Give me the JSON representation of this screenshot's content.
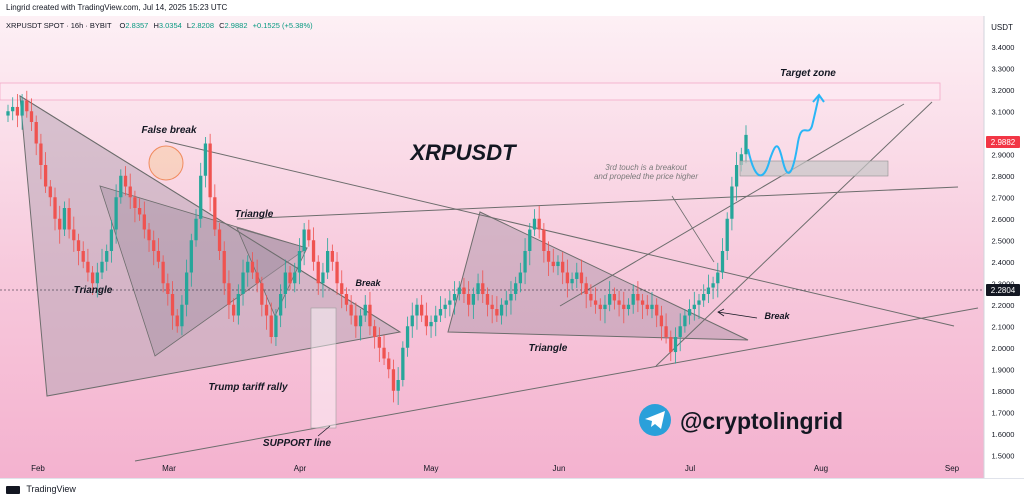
{
  "header": {
    "created_by": "Lingrid created with TradingView.com, Jul 14, 2025 15:23 UTC"
  },
  "legend": {
    "symbol": "XRPUSDT SPOT · 16h · BYBIT",
    "o_label": "O",
    "o_value": "2.8357",
    "h_label": "H",
    "h_value": "3.0354",
    "l_label": "L",
    "l_value": "2.8208",
    "c_label": "C",
    "c_value": "2.9882",
    "change": "+0.1525 (+5.38%)"
  },
  "currency_label": "USDT",
  "watermark_title": "XRPUSDT",
  "annotations": {
    "target_zone": "Target zone",
    "false_break": "False break",
    "triangle_1": "Triangle",
    "triangle_2": "Triangle",
    "triangle_3": "Triangle",
    "break_1": "Break",
    "break_2": "Break",
    "trump_rally": "Trump tariff rally",
    "support_line": "SUPPORT line",
    "third_touch_1": "3rd touch is a breakout",
    "third_touch_2": "and propeled the price higher"
  },
  "branding": {
    "handle": "@cryptolingrid",
    "footer_logo_text": "TradingView"
  },
  "price_badges": {
    "last": "2.9882",
    "dotted": "2.2804"
  },
  "colors": {
    "up": "#26a69a",
    "down": "#ef5350",
    "last_price_badge": "#f23645",
    "dotted_badge": "#131722",
    "target_zone_fill": "#fbe9f1",
    "triangle_fill": "#b8a3b3",
    "projection": "#29b6f6",
    "telegram": "#2aa0da"
  },
  "chart_data": {
    "type": "candlestick",
    "title": "XRPUSDT",
    "ylabel": "USDT",
    "ylim": [
      1.45,
      3.45
    ],
    "y_ticks": [
      "3.4000",
      "3.3000",
      "3.2000",
      "3.1000",
      "2.9000",
      "2.8000",
      "2.7000",
      "2.6000",
      "2.5000",
      "2.4000",
      "2.3000",
      "2.2000",
      "2.1000",
      "2.0000",
      "1.9000",
      "1.8000",
      "1.7000",
      "1.6000",
      "1.5000"
    ],
    "x_ticks": [
      "Feb",
      "Mar",
      "Apr",
      "May",
      "Jun",
      "Jul",
      "Aug",
      "Sep"
    ],
    "closes": [
      3.1,
      3.12,
      3.08,
      3.15,
      3.1,
      3.05,
      2.95,
      2.85,
      2.75,
      2.7,
      2.6,
      2.55,
      2.65,
      2.55,
      2.5,
      2.45,
      2.4,
      2.35,
      2.3,
      2.35,
      2.4,
      2.45,
      2.55,
      2.7,
      2.8,
      2.75,
      2.7,
      2.65,
      2.62,
      2.55,
      2.5,
      2.45,
      2.4,
      2.3,
      2.25,
      2.15,
      2.1,
      2.2,
      2.35,
      2.5,
      2.6,
      2.8,
      2.95,
      2.7,
      2.55,
      2.45,
      2.3,
      2.2,
      2.15,
      2.25,
      2.35,
      2.4,
      2.35,
      2.3,
      2.2,
      2.15,
      2.05,
      2.15,
      2.25,
      2.35,
      2.3,
      2.35,
      2.45,
      2.55,
      2.5,
      2.4,
      2.3,
      2.35,
      2.45,
      2.4,
      2.3,
      2.25,
      2.2,
      2.15,
      2.1,
      2.15,
      2.2,
      2.1,
      2.05,
      2.0,
      1.95,
      1.9,
      1.8,
      1.85,
      2.0,
      2.1,
      2.15,
      2.2,
      2.15,
      2.1,
      2.12,
      2.15,
      2.18,
      2.2,
      2.22,
      2.25,
      2.28,
      2.25,
      2.2,
      2.25,
      2.3,
      2.25,
      2.2,
      2.18,
      2.15,
      2.2,
      2.22,
      2.25,
      2.3,
      2.35,
      2.45,
      2.55,
      2.6,
      2.55,
      2.45,
      2.4,
      2.38,
      2.4,
      2.35,
      2.3,
      2.32,
      2.35,
      2.3,
      2.25,
      2.22,
      2.2,
      2.18,
      2.2,
      2.25,
      2.22,
      2.2,
      2.18,
      2.2,
      2.25,
      2.22,
      2.2,
      2.18,
      2.2,
      2.15,
      2.1,
      2.05,
      1.98,
      2.05,
      2.1,
      2.15,
      2.18,
      2.2,
      2.22,
      2.25,
      2.28,
      2.3,
      2.35,
      2.45,
      2.6,
      2.75,
      2.85,
      2.9,
      2.99
    ],
    "price_range_high": 3.0354,
    "price_range_low": 2.8208,
    "last_close": 2.9882,
    "change": 0.1525,
    "change_pct": 5.38
  }
}
